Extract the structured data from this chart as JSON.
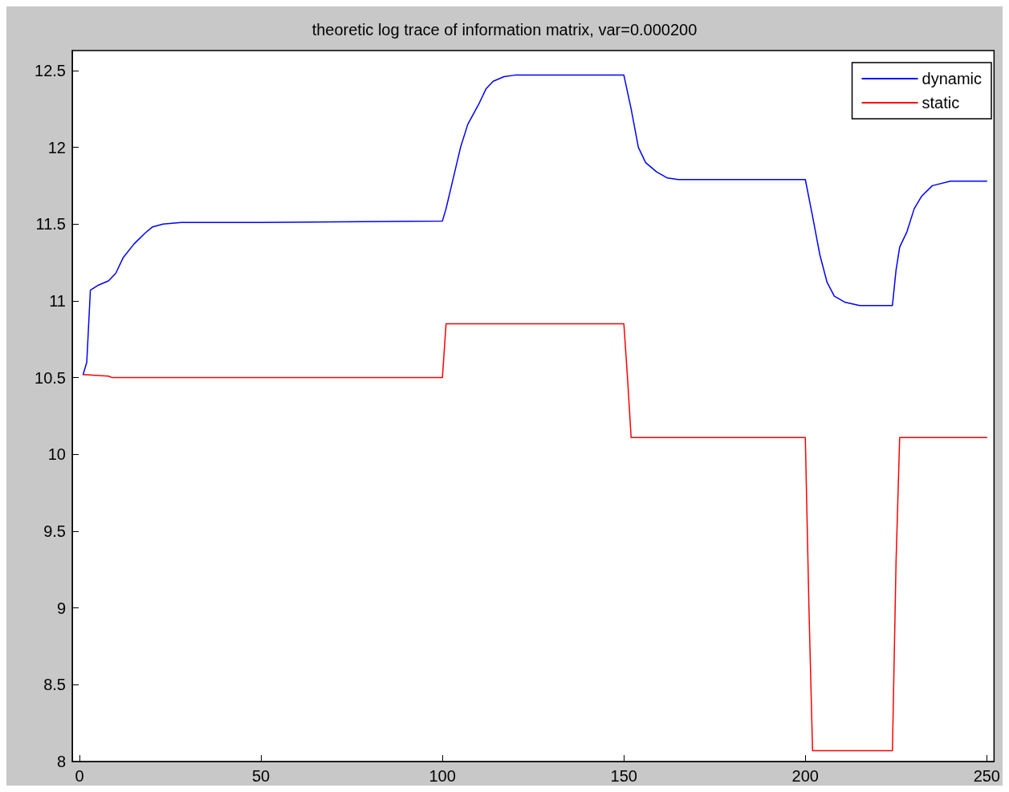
{
  "chart_data": {
    "type": "line",
    "title": "theoretic log trace of information matrix, var=0.000200",
    "xlim": [
      -2,
      252
    ],
    "xticks": [
      0,
      50,
      100,
      150,
      200,
      250
    ],
    "ylim": [
      8,
      12.63
    ],
    "yticks": [
      8,
      8.5,
      9,
      9.5,
      10,
      10.5,
      11,
      11.5,
      12,
      12.5
    ],
    "grid": false,
    "legend": "top right",
    "marker": "none",
    "line_style": "solid",
    "series": [
      {
        "name": "dynamic",
        "color": "#0000ff",
        "x": [
          1,
          2,
          3,
          5,
          8,
          10,
          12,
          15,
          18,
          20,
          23,
          28,
          50,
          100,
          101,
          103,
          105,
          107,
          110,
          112,
          114,
          117,
          120,
          150,
          152,
          154,
          156,
          159,
          162,
          165,
          200,
          202,
          204,
          206,
          208,
          211,
          215,
          224,
          225,
          226,
          228,
          230,
          232,
          235,
          240,
          250
        ],
        "values": [
          10.52,
          10.6,
          11.07,
          11.1,
          11.13,
          11.18,
          11.28,
          11.37,
          11.44,
          11.48,
          11.5,
          11.51,
          11.51,
          11.52,
          11.6,
          11.8,
          12.0,
          12.15,
          12.28,
          12.38,
          12.43,
          12.46,
          12.47,
          12.47,
          12.25,
          12.0,
          11.9,
          11.84,
          11.8,
          11.79,
          11.79,
          11.55,
          11.3,
          11.12,
          11.03,
          10.99,
          10.97,
          10.97,
          11.2,
          11.35,
          11.45,
          11.6,
          11.68,
          11.75,
          11.78,
          11.78
        ]
      },
      {
        "name": "static",
        "color": "#ff0000",
        "x": [
          1,
          8,
          9,
          100,
          101,
          150,
          151,
          152,
          200,
          201,
          202,
          224,
          225,
          226,
          250
        ],
        "values": [
          10.52,
          10.51,
          10.5,
          10.5,
          10.85,
          10.85,
          10.5,
          10.11,
          10.11,
          9.0,
          8.07,
          8.07,
          9.3,
          10.11,
          10.11
        ]
      }
    ]
  }
}
